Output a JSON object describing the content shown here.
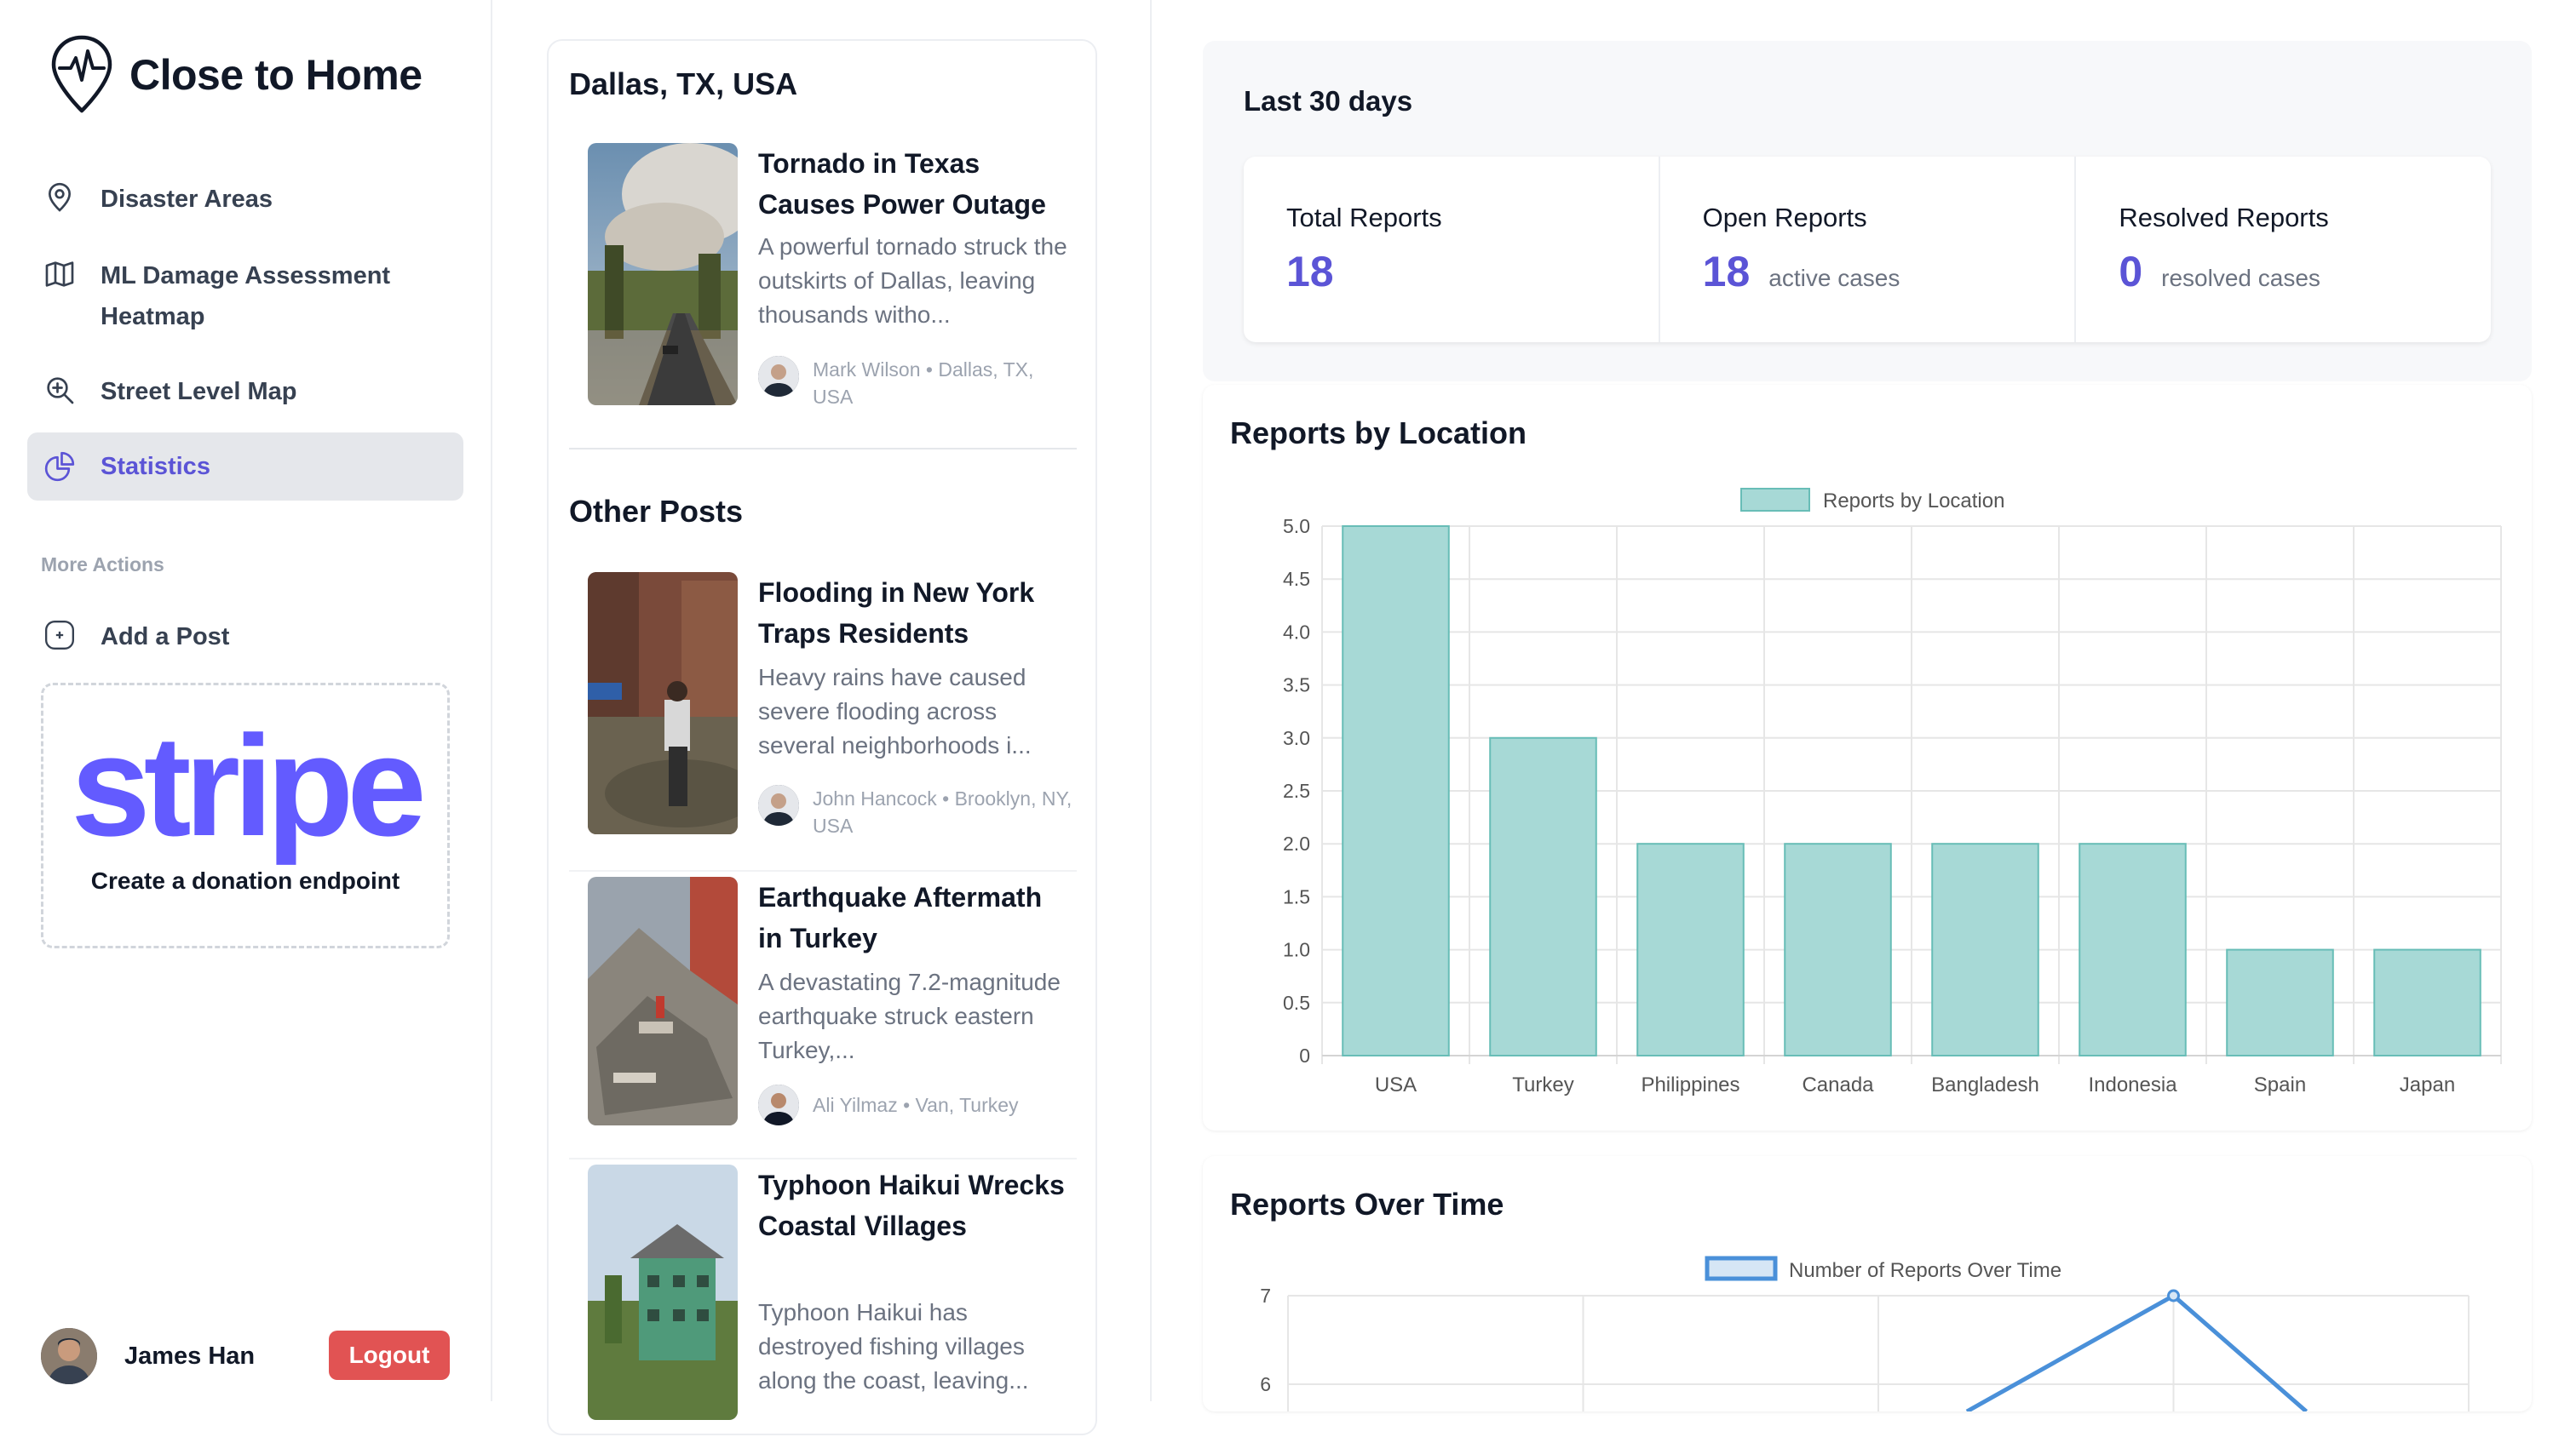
{
  "app": {
    "name": "Close to Home"
  },
  "sidebar": {
    "items": [
      {
        "label": "Disaster Areas",
        "icon": "map-pin-icon"
      },
      {
        "label": "ML Damage Assessment Heatmap",
        "icon": "map-icon"
      },
      {
        "label": "Street Level Map",
        "icon": "zoom-in-icon"
      },
      {
        "label": "Statistics",
        "icon": "pie-chart-icon",
        "active": true
      }
    ],
    "more_actions_label": "More Actions",
    "add_post_label": "Add a Post",
    "stripe": {
      "logo_text": "stripe",
      "caption": "Create a donation endpoint"
    },
    "user": {
      "name": "James Han",
      "logout_label": "Logout"
    }
  },
  "feed": {
    "location_heading": "Dallas, TX, USA",
    "featured": {
      "title": "Tornado in Texas Causes Power Outage",
      "excerpt": "A powerful tornado struck the outskirts of Dallas, leaving thousands witho...",
      "author": "Mark Wilson",
      "location": "Dallas, TX, USA",
      "meta": "Mark Wilson • Dallas, TX, USA"
    },
    "other_heading": "Other Posts",
    "posts": [
      {
        "title": "Flooding in New York Traps Residents",
        "excerpt": "Heavy rains have caused severe flooding across several neighborhoods i...",
        "meta": "John Hancock • Brooklyn, NY, USA"
      },
      {
        "title": "Earthquake Aftermath in Turkey",
        "excerpt": "A devastating 7.2-magnitude earthquake struck eastern Turkey,...",
        "meta": "Ali Yilmaz • Van, Turkey"
      },
      {
        "title": "Typhoon Haikui Wrecks Coastal Villages",
        "excerpt": "Typhoon Haikui has destroyed fishing villages along the coast, leaving..."
      }
    ]
  },
  "stats": {
    "period": "Last 30 days",
    "cards": [
      {
        "label": "Total Reports",
        "value": "18",
        "sub": ""
      },
      {
        "label": "Open Reports",
        "value": "18",
        "sub": "active cases"
      },
      {
        "label": "Resolved Reports",
        "value": "0",
        "sub": "resolved cases"
      }
    ]
  },
  "colors": {
    "accent": "#5b54d6",
    "bar_fill": "#a7d9d6",
    "bar_stroke": "#68bdb7",
    "line": "#4a90d9",
    "logout": "#e15353",
    "stripe": "#635bff"
  },
  "chart_data": [
    {
      "type": "bar",
      "title": "Reports by Location",
      "legend": "Reports by Location",
      "legend_position": "top",
      "categories": [
        "USA",
        "Turkey",
        "Philippines",
        "Canada",
        "Bangladesh",
        "Indonesia",
        "Spain",
        "Japan"
      ],
      "values": [
        5,
        3,
        2,
        2,
        2,
        2,
        1,
        1
      ],
      "ylim": [
        0,
        5
      ],
      "yticks": [
        "0",
        "0.5",
        "1.0",
        "1.5",
        "2.0",
        "2.5",
        "3.0",
        "3.5",
        "4.0",
        "4.5",
        "5.0"
      ],
      "grid": true
    },
    {
      "type": "line",
      "title": "Reports Over Time",
      "legend": "Number of Reports Over Time",
      "legend_position": "top",
      "visible_yticks": [
        "7",
        "6"
      ],
      "peak_value": 7,
      "grid": true
    }
  ]
}
